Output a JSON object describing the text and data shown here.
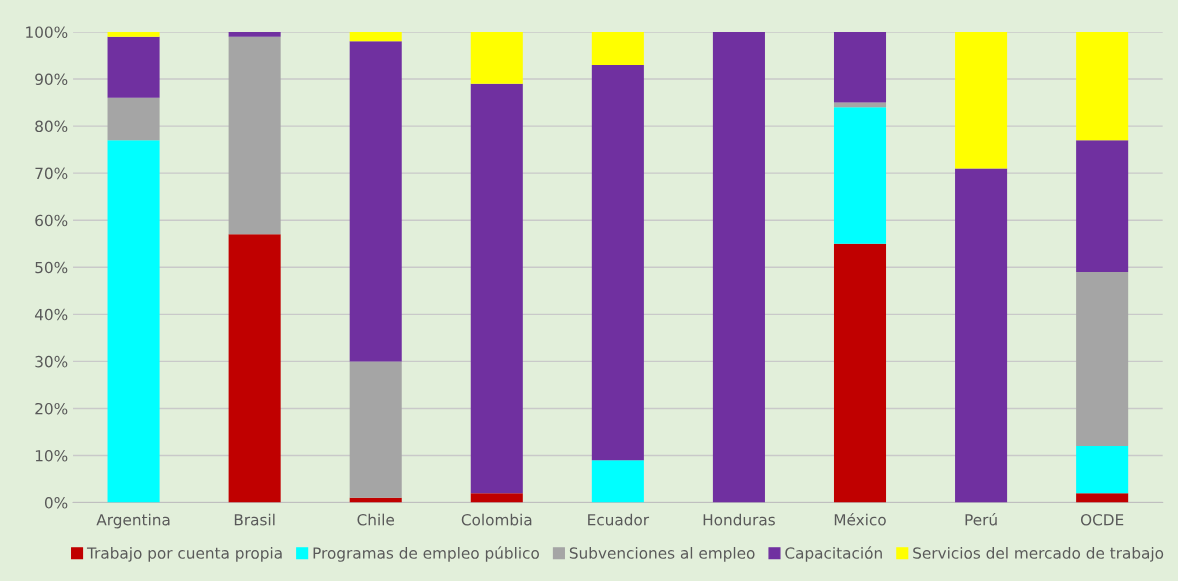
{
  "chart_data": {
    "type": "bar",
    "stacked": true,
    "categories": [
      "Argentina",
      "Brasil",
      "Chile",
      "Colombia",
      "Ecuador",
      "Honduras",
      "México",
      "Perú",
      "OCDE"
    ],
    "series": [
      {
        "name": "Trabajo por cuenta propia",
        "color": "#c00000",
        "values": [
          0,
          57,
          1,
          2,
          0,
          0,
          55,
          0,
          2
        ]
      },
      {
        "name": "Programas de empleo público",
        "color": "#00ffff",
        "values": [
          77,
          0,
          0,
          0,
          9,
          0,
          29,
          0,
          10
        ]
      },
      {
        "name": "Subvenciones al empleo",
        "color": "#a5a5a5",
        "values": [
          9,
          42,
          29,
          0,
          0,
          0,
          1,
          0,
          37
        ]
      },
      {
        "name": "Capacitación",
        "color": "#7030a0",
        "values": [
          13,
          1,
          68,
          87,
          84,
          100,
          15,
          71,
          28
        ]
      },
      {
        "name": "Servicios del mercado de trabajo",
        "color": "#ffff00",
        "values": [
          1,
          0,
          2,
          11,
          7,
          0,
          0,
          29,
          23
        ]
      }
    ],
    "ylim": [
      0,
      100
    ],
    "yticks": [
      {
        "value": 0,
        "label": "0%"
      },
      {
        "value": 10,
        "label": "10%"
      },
      {
        "value": 20,
        "label": "20%"
      },
      {
        "value": 30,
        "label": "30%"
      },
      {
        "value": 40,
        "label": "40%"
      },
      {
        "value": 50,
        "label": "50%"
      },
      {
        "value": 60,
        "label": "60%"
      },
      {
        "value": 70,
        "label": "70%"
      },
      {
        "value": 80,
        "label": "80%"
      },
      {
        "value": 90,
        "label": "90%"
      },
      {
        "value": 100,
        "label": "100%"
      }
    ],
    "grid": "y",
    "legend": "bottom"
  }
}
